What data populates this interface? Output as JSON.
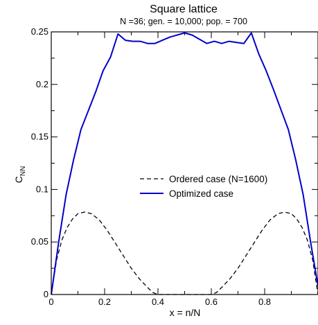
{
  "chart_data": {
    "type": "line",
    "title": "Square lattice",
    "subtitle": "N =36; gen. = 10,000; pop. = 700",
    "xlabel": "x = n/N",
    "ylabel_main": "C",
    "ylabel_sub": "NN",
    "xlim": [
      0,
      1
    ],
    "ylim": [
      0,
      0.25
    ],
    "xticks": [
      "0",
      "0.2",
      "0.4",
      "0.6",
      "0.8"
    ],
    "yticks": [
      "0",
      "0.05",
      "0.1",
      "0.15",
      "0.2",
      "0.25"
    ],
    "legend_position": "center-right",
    "series": [
      {
        "name": "Ordered case (N=1600)",
        "style": "dashed",
        "color": "#000000",
        "x": [
          0,
          0.02,
          0.04,
          0.06,
          0.08,
          0.1,
          0.125,
          0.15,
          0.18,
          0.21,
          0.24,
          0.27,
          0.3,
          0.33,
          0.36,
          0.38,
          0.4,
          0.6,
          0.62,
          0.64,
          0.67,
          0.7,
          0.73,
          0.76,
          0.79,
          0.82,
          0.85,
          0.875,
          0.9,
          0.92,
          0.94,
          0.96,
          0.98,
          1.0
        ],
        "y": [
          0,
          0.033,
          0.052,
          0.064,
          0.072,
          0.077,
          0.0785,
          0.077,
          0.071,
          0.061,
          0.049,
          0.037,
          0.025,
          0.015,
          0.007,
          0.002,
          0,
          0,
          0.002,
          0.007,
          0.015,
          0.025,
          0.037,
          0.049,
          0.061,
          0.071,
          0.077,
          0.0785,
          0.077,
          0.072,
          0.064,
          0.052,
          0.033,
          0
        ]
      },
      {
        "name": "Optimized case",
        "style": "solid",
        "color": "#0000cc",
        "x": [
          0,
          0.0278,
          0.0556,
          0.0833,
          0.1111,
          0.1389,
          0.1667,
          0.1944,
          0.2222,
          0.25,
          0.2778,
          0.3056,
          0.3333,
          0.3611,
          0.3889,
          0.4167,
          0.4444,
          0.4722,
          0.5,
          0.5278,
          0.5556,
          0.5833,
          0.6111,
          0.6389,
          0.6667,
          0.6944,
          0.7222,
          0.75,
          0.7778,
          0.8056,
          0.8333,
          0.8611,
          0.8889,
          0.9167,
          0.9444,
          0.9722,
          1.0
        ],
        "y": [
          0,
          0.05,
          0.095,
          0.128,
          0.157,
          0.175,
          0.193,
          0.213,
          0.226,
          0.248,
          0.242,
          0.241,
          0.241,
          0.239,
          0.239,
          0.242,
          0.245,
          0.247,
          0.249,
          0.247,
          0.243,
          0.239,
          0.241,
          0.239,
          0.241,
          0.24,
          0.239,
          0.249,
          0.229,
          0.213,
          0.195,
          0.176,
          0.157,
          0.128,
          0.095,
          0.05,
          0.008
        ]
      }
    ]
  }
}
